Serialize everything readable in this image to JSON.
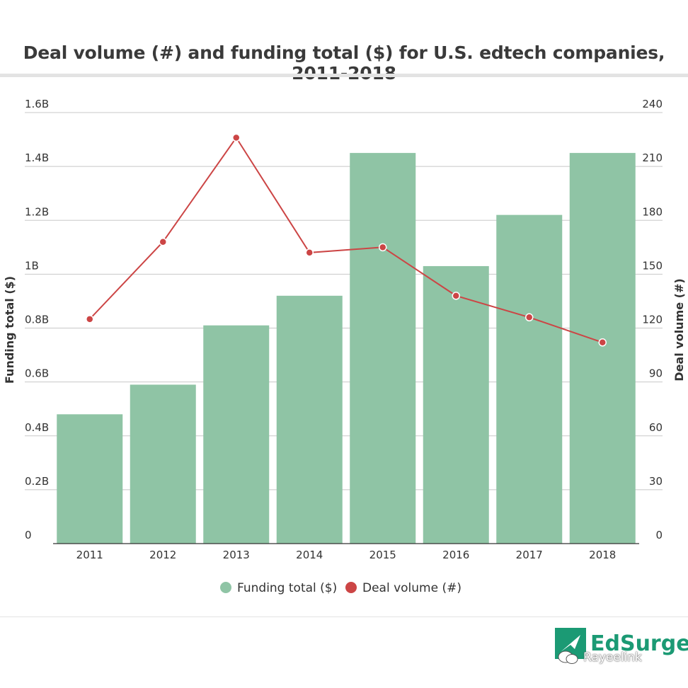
{
  "chart_data": {
    "type": "bar",
    "title": "Deal volume (#) and funding total ($) for U.S. edtech companies, 2011-2018",
    "categories": [
      "2011",
      "2012",
      "2013",
      "2014",
      "2015",
      "2016",
      "2017",
      "2018"
    ],
    "series": [
      {
        "name": "Funding total ($)",
        "type": "bar",
        "axis": "left",
        "color": "#8fc4a5",
        "values": [
          0.48,
          0.59,
          0.81,
          0.92,
          1.45,
          1.03,
          1.22,
          1.45
        ]
      },
      {
        "name": "Deal volume (#)",
        "type": "line",
        "axis": "right",
        "color": "#cc4545",
        "values": [
          125,
          168,
          226,
          162,
          165,
          138,
          126,
          112
        ]
      }
    ],
    "y_left": {
      "label": "Funding total ($)",
      "range": [
        0,
        1.6
      ],
      "ticks": [
        0,
        0.2,
        0.4,
        0.6,
        0.8,
        1.0,
        1.2,
        1.4,
        1.6
      ],
      "tick_labels": [
        "0",
        "0.2B",
        "0.4B",
        "0.6B",
        "0.8B",
        "1B",
        "1.2B",
        "1.4B",
        "1.6B"
      ]
    },
    "y_right": {
      "label": "Deal volume (#)",
      "range": [
        0,
        240
      ],
      "ticks": [
        0,
        30,
        60,
        90,
        120,
        150,
        180,
        210,
        240
      ],
      "tick_labels": [
        "0",
        "30",
        "60",
        "90",
        "120",
        "150",
        "180",
        "210",
        "240"
      ]
    },
    "grid": true,
    "legend": "bottom-center"
  },
  "branding": {
    "logo_text": "EdSurge",
    "logo_color": "#1b9a74",
    "watermark_text": "Rayeelink"
  }
}
